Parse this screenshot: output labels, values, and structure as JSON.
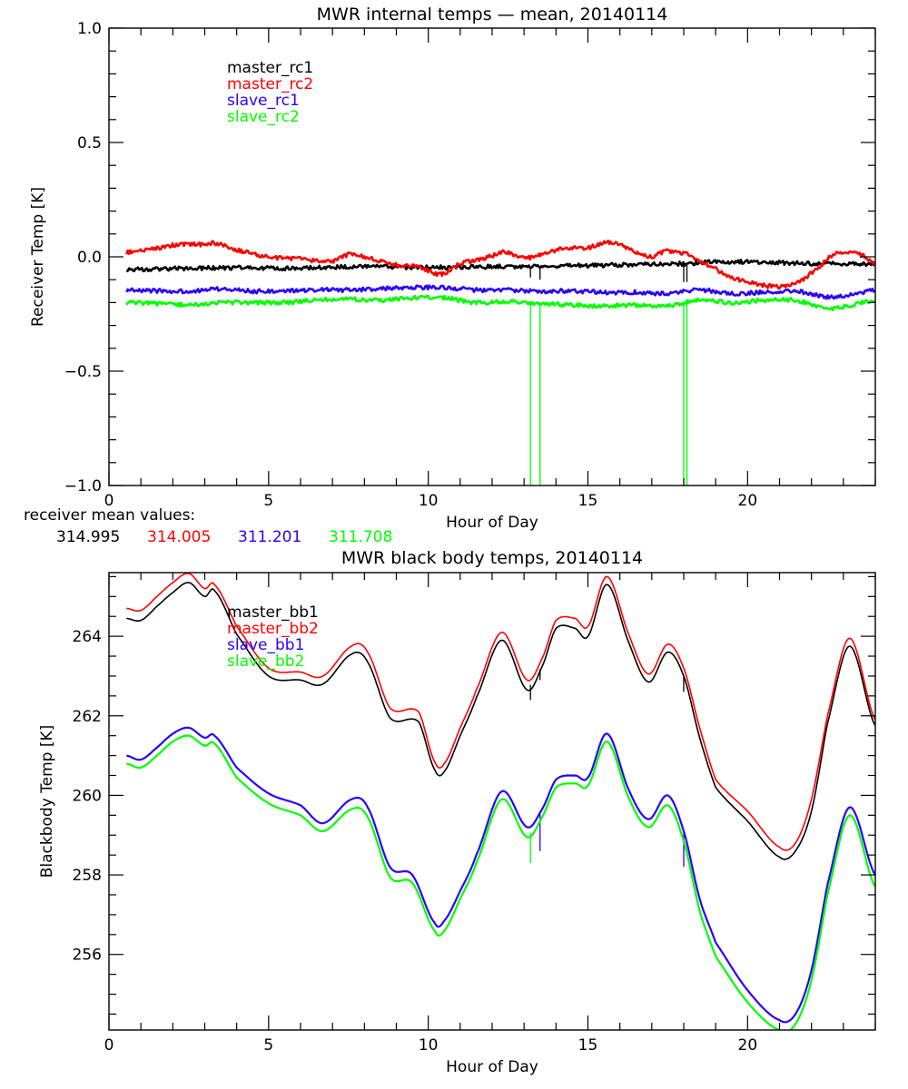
{
  "chart_data": [
    {
      "type": "line",
      "title": "MWR internal temps — mean, 20140114",
      "xlabel": "Hour of Day",
      "ylabel": "Receiver Temp [K]",
      "xlim": [
        0,
        24
      ],
      "ylim": [
        -1.0,
        1.0
      ],
      "xticks": [
        0,
        5,
        10,
        15,
        20
      ],
      "xtick_labels": [
        "0",
        "5",
        "10",
        "15",
        "20"
      ],
      "yticks": [
        -1.0,
        -0.5,
        0.0,
        0.5,
        1.0
      ],
      "ytick_labels": [
        "−1.0",
        "−0.5",
        "0.0",
        "0.5",
        "1.0"
      ],
      "grid": false,
      "legend_position": "top-left",
      "series": [
        {
          "name": "master_rc1",
          "color": "#000000",
          "x": [
            0.55,
            2,
            4,
            6,
            7,
            8,
            9,
            10,
            11,
            12,
            13,
            14,
            15,
            16,
            17,
            18,
            19,
            20,
            21,
            22,
            23,
            24
          ],
          "y": [
            -0.055,
            -0.052,
            -0.048,
            -0.05,
            -0.045,
            -0.043,
            -0.045,
            -0.047,
            -0.045,
            -0.043,
            -0.042,
            -0.04,
            -0.038,
            -0.035,
            -0.03,
            -0.03,
            -0.022,
            -0.022,
            -0.025,
            -0.03,
            -0.03,
            -0.03
          ],
          "spikes": [
            {
              "x": 13.2,
              "y": -0.09
            },
            {
              "x": 13.5,
              "y": -0.1
            },
            {
              "x": 18.0,
              "y": -0.11
            },
            {
              "x": 18.1,
              "y": -0.11
            }
          ]
        },
        {
          "name": "master_rc2",
          "color": "#ff0000",
          "x": [
            0.55,
            1.2,
            2.0,
            2.5,
            3.0,
            3.3,
            4.0,
            5.0,
            6.0,
            7.0,
            7.5,
            8.0,
            9.0,
            9.7,
            10.3,
            10.6,
            11.0,
            11.5,
            12.0,
            12.4,
            12.9,
            13.3,
            14.0,
            14.5,
            15.0,
            15.6,
            16.2,
            16.9,
            17.5,
            18.2,
            18.8,
            19.5,
            20.3,
            21.0,
            21.6,
            22.2,
            22.7,
            23.2,
            23.7,
            24.0
          ],
          "y": [
            0.02,
            0.03,
            0.05,
            0.055,
            0.053,
            0.06,
            0.03,
            0.0,
            -0.01,
            -0.02,
            0.01,
            0.0,
            -0.035,
            -0.045,
            -0.075,
            -0.065,
            -0.03,
            -0.015,
            0.005,
            0.02,
            0.0,
            0.0,
            0.03,
            0.04,
            0.04,
            0.065,
            0.04,
            0.0,
            0.025,
            0.005,
            -0.04,
            -0.09,
            -0.12,
            -0.13,
            -0.11,
            -0.05,
            0.01,
            0.02,
            0.0,
            -0.03
          ]
        },
        {
          "name": "slave_rc1",
          "color": "#2a00ff",
          "x": [
            0.55,
            1.5,
            2.5,
            3.5,
            4.5,
            5.5,
            6.5,
            7.5,
            8.5,
            9.5,
            10.5,
            11.5,
            12.5,
            13.5,
            14.5,
            15.5,
            16.5,
            17.5,
            18.5,
            19.5,
            20.5,
            21.5,
            22.5,
            23.3,
            24.0
          ],
          "y": [
            -0.145,
            -0.148,
            -0.15,
            -0.14,
            -0.15,
            -0.15,
            -0.145,
            -0.145,
            -0.14,
            -0.135,
            -0.135,
            -0.145,
            -0.145,
            -0.15,
            -0.15,
            -0.155,
            -0.155,
            -0.16,
            -0.145,
            -0.16,
            -0.155,
            -0.15,
            -0.175,
            -0.165,
            -0.145
          ]
        },
        {
          "name": "slave_rc2",
          "color": "#00ff00",
          "x": [
            0.55,
            1.5,
            2.5,
            3.5,
            4.5,
            5.5,
            6.5,
            7.5,
            8.5,
            9.5,
            10.5,
            11.5,
            12.5,
            13.5,
            14.5,
            15.5,
            16.5,
            17.5,
            18.5,
            19.5,
            20.5,
            21.5,
            22.5,
            23.3,
            24.0
          ],
          "y": [
            -0.2,
            -0.205,
            -0.21,
            -0.2,
            -0.2,
            -0.2,
            -0.19,
            -0.185,
            -0.19,
            -0.18,
            -0.18,
            -0.2,
            -0.195,
            -0.205,
            -0.21,
            -0.215,
            -0.21,
            -0.215,
            -0.19,
            -0.2,
            -0.19,
            -0.19,
            -0.225,
            -0.21,
            -0.19
          ],
          "spikes": [
            {
              "x": 13.2,
              "y": -1.0
            },
            {
              "x": 13.5,
              "y": -1.0
            },
            {
              "x": 18.0,
              "y": -1.0
            },
            {
              "x": 18.1,
              "y": -1.0
            }
          ]
        }
      ],
      "annotations": {
        "label": "receiver mean values:",
        "values": [
          {
            "text": "314.995",
            "color": "#000000"
          },
          {
            "text": "314.005",
            "color": "#ff0000"
          },
          {
            "text": "311.201",
            "color": "#2a00ff"
          },
          {
            "text": "311.708",
            "color": "#00ff00"
          }
        ]
      }
    },
    {
      "type": "line",
      "title": "MWR black body temps, 20140114",
      "xlabel": "Hour of Day",
      "ylabel": "Blackbody Temp [K]",
      "xlim": [
        0,
        24
      ],
      "ylim": [
        254.1,
        265.6
      ],
      "xticks": [
        0,
        5,
        10,
        15,
        20
      ],
      "xtick_labels": [
        "0",
        "5",
        "10",
        "15",
        "20"
      ],
      "yticks": [
        256,
        258,
        260,
        262,
        264
      ],
      "ytick_labels": [
        "256",
        "258",
        "260",
        "262",
        "264"
      ],
      "grid": false,
      "legend_position": "top-left",
      "series": [
        {
          "name": "master_bb1",
          "color": "#000000",
          "x": [
            0.55,
            1.0,
            1.5,
            2.0,
            2.5,
            3.0,
            3.3,
            4.0,
            5.0,
            6.0,
            6.7,
            7.6,
            8.1,
            8.8,
            9.7,
            10.2,
            10.5,
            11.0,
            11.5,
            12.3,
            13.1,
            13.6,
            14.0,
            14.6,
            15.0,
            15.6,
            16.3,
            16.9,
            17.5,
            18.0,
            18.5,
            19.0,
            20.0,
            21.0,
            21.5,
            22.0,
            22.5,
            23.2,
            24.0
          ],
          "y": [
            264.45,
            264.4,
            264.75,
            265.1,
            265.35,
            265.0,
            265.15,
            264.05,
            263.0,
            262.9,
            262.8,
            263.55,
            263.35,
            261.95,
            261.85,
            260.65,
            260.6,
            261.5,
            262.45,
            263.9,
            262.65,
            263.3,
            264.2,
            264.2,
            264.0,
            265.3,
            263.8,
            262.85,
            263.6,
            263.0,
            261.45,
            260.2,
            259.35,
            258.45,
            258.6,
            259.6,
            261.8,
            263.75,
            261.75
          ],
          "spikes": [
            {
              "x": 13.2,
              "y": 262.4
            },
            {
              "x": 13.5,
              "y": 262.9
            },
            {
              "x": 18.0,
              "y": 262.6
            }
          ]
        },
        {
          "name": "master_bb2",
          "color": "#ff0000",
          "x": [
            0.55,
            1.0,
            1.5,
            2.0,
            2.5,
            3.0,
            3.3,
            4.0,
            5.0,
            6.0,
            6.7,
            7.6,
            8.1,
            8.8,
            9.7,
            10.2,
            10.5,
            11.0,
            11.5,
            12.3,
            13.1,
            13.6,
            14.0,
            14.6,
            15.0,
            15.6,
            16.3,
            16.9,
            17.5,
            18.0,
            18.5,
            19.0,
            20.0,
            21.0,
            21.5,
            22.0,
            22.5,
            23.2,
            24.0
          ],
          "y": [
            264.7,
            264.65,
            265.0,
            265.35,
            265.58,
            265.2,
            265.3,
            264.25,
            263.2,
            263.1,
            263.0,
            263.75,
            263.6,
            262.2,
            262.1,
            260.85,
            260.8,
            261.7,
            262.65,
            264.1,
            262.9,
            263.5,
            264.4,
            264.45,
            264.25,
            265.5,
            264.0,
            263.05,
            263.8,
            263.2,
            261.7,
            260.4,
            259.6,
            258.7,
            258.8,
            259.9,
            262.0,
            263.95,
            261.9
          ]
        },
        {
          "name": "slave_bb1",
          "color": "#2a00ff",
          "x": [
            0.55,
            1.0,
            1.5,
            2.0,
            2.5,
            3.0,
            3.3,
            4.0,
            5.0,
            6.0,
            6.7,
            7.6,
            8.1,
            8.8,
            9.5,
            10.2,
            10.5,
            11.0,
            11.5,
            12.3,
            13.1,
            13.6,
            14.0,
            14.6,
            15.0,
            15.6,
            16.3,
            16.9,
            17.5,
            18.0,
            18.5,
            19.0,
            20.0,
            21.0,
            21.5,
            22.0,
            22.5,
            23.2,
            24.0
          ],
          "y": [
            261.0,
            260.9,
            261.2,
            261.55,
            261.7,
            261.45,
            261.5,
            260.7,
            260.05,
            259.75,
            259.3,
            259.9,
            259.7,
            258.2,
            258.0,
            256.8,
            256.85,
            257.6,
            258.5,
            260.1,
            259.2,
            259.7,
            260.4,
            260.5,
            260.45,
            261.55,
            260.1,
            259.4,
            260.0,
            259.1,
            257.4,
            256.3,
            255.1,
            254.35,
            254.5,
            255.6,
            257.75,
            259.7,
            258.0
          ],
          "spikes": [
            {
              "x": 13.5,
              "y": 258.6
            },
            {
              "x": 18.0,
              "y": 258.2
            }
          ]
        },
        {
          "name": "slave_bb2",
          "color": "#00ff00",
          "x": [
            0.55,
            1.0,
            1.5,
            2.0,
            2.5,
            3.0,
            3.3,
            4.0,
            5.0,
            6.0,
            6.7,
            7.6,
            8.1,
            8.8,
            9.5,
            10.2,
            10.5,
            11.0,
            11.5,
            12.3,
            13.1,
            13.6,
            14.0,
            14.6,
            15.0,
            15.6,
            16.3,
            16.9,
            17.5,
            18.0,
            18.5,
            19.0,
            20.0,
            21.0,
            21.5,
            22.0,
            22.5,
            23.2,
            24.0
          ],
          "y": [
            260.8,
            260.7,
            261.0,
            261.35,
            261.5,
            261.25,
            261.3,
            260.45,
            259.8,
            259.5,
            259.1,
            259.65,
            259.45,
            257.95,
            257.8,
            256.6,
            256.6,
            257.4,
            258.3,
            259.9,
            258.95,
            259.5,
            260.2,
            260.3,
            260.25,
            261.35,
            259.9,
            259.2,
            259.75,
            258.85,
            257.1,
            255.95,
            254.8,
            254.1,
            254.25,
            255.35,
            257.5,
            259.5,
            257.7
          ],
          "spikes": [
            {
              "x": 13.2,
              "y": 258.3
            }
          ]
        }
      ]
    }
  ]
}
